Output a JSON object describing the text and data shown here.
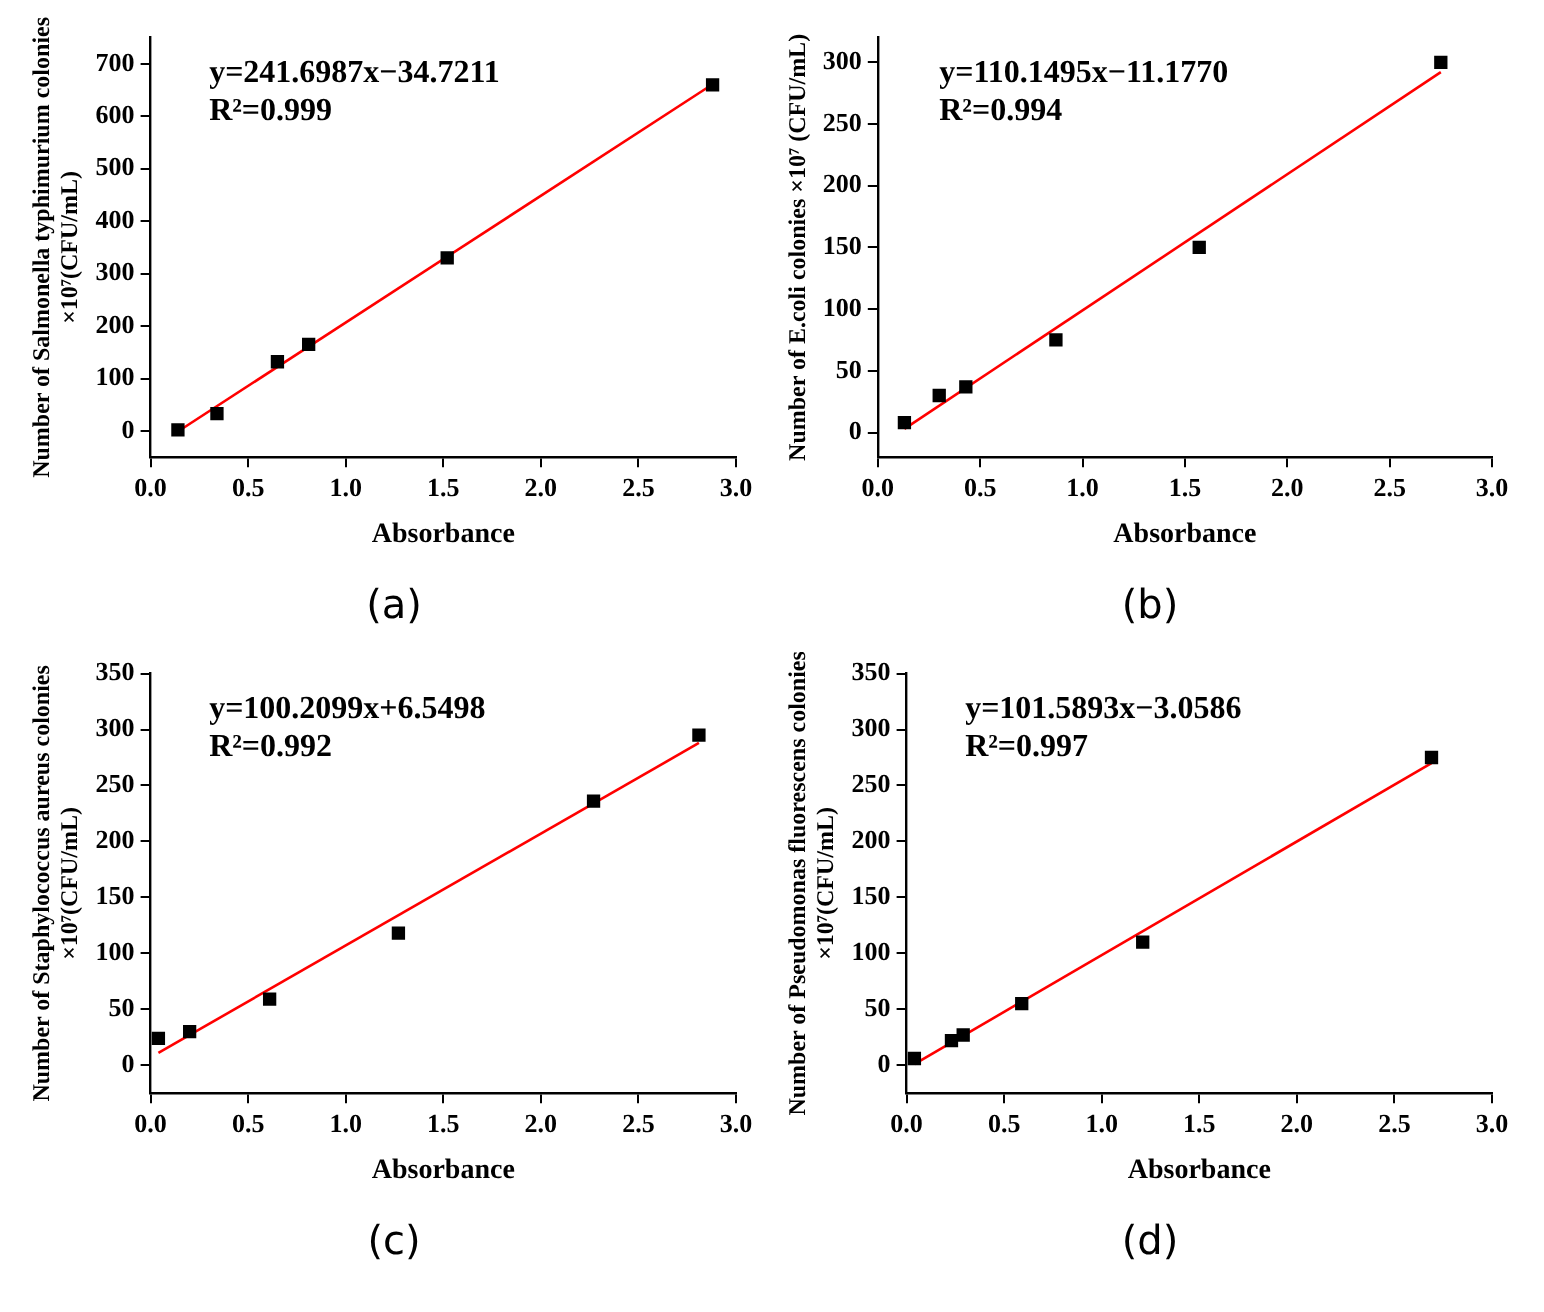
{
  "chart_data": [
    {
      "type": "scatter",
      "title": "(a)",
      "xlabel": "Absorbance",
      "ylabel": "Number of Salmonella typhimurium colonies ×10⁷(CFU/mL)",
      "annotations": [
        "y=241.6987x−34.7211",
        "R²=0.999"
      ],
      "xlim": [
        0,
        3
      ],
      "xticks": [
        {
          "value": 0,
          "label": "0.0"
        },
        {
          "value": 0.5,
          "label": "0.5"
        },
        {
          "value": 1,
          "label": "1.0"
        },
        {
          "value": 1.5,
          "label": "1.5"
        },
        {
          "value": 2,
          "label": "2.0"
        },
        {
          "value": 2.5,
          "label": "2.5"
        },
        {
          "value": 3,
          "label": "3.0"
        }
      ],
      "ylim": [
        -50,
        750
      ],
      "yticks": [
        0,
        100,
        200,
        300,
        400,
        500,
        600,
        700
      ],
      "grid": false,
      "legend": false,
      "series": [
        {
          "type": "scatter",
          "marker": "square",
          "color": "#000000",
          "x": [
            0.14,
            0.34,
            0.65,
            0.81,
            1.52,
            2.88
          ],
          "values": [
            2,
            33,
            132,
            165,
            330,
            660
          ]
        },
        {
          "type": "line",
          "marker": "none",
          "color": "#ff0000",
          "x": [
            0.14,
            2.88
          ],
          "values": [
            -1,
            661
          ]
        }
      ]
    },
    {
      "type": "scatter",
      "title": "(b)",
      "xlabel": "Absorbance",
      "ylabel": "Number of E.coli colonies ×10⁷ (CFU/mL)",
      "annotations": [
        "y=110.1495x−11.1770",
        "R²=0.994"
      ],
      "xlim": [
        0,
        3
      ],
      "xticks": [
        {
          "value": 0,
          "label": "0.0"
        },
        {
          "value": 0.5,
          "label": "0.5"
        },
        {
          "value": 1,
          "label": "1.0"
        },
        {
          "value": 1.5,
          "label": "1.5"
        },
        {
          "value": 2,
          "label": "2.0"
        },
        {
          "value": 2.5,
          "label": "2.5"
        },
        {
          "value": 3,
          "label": "3.0"
        }
      ],
      "ylim": [
        -20,
        320
      ],
      "yticks": [
        0,
        50,
        100,
        150,
        200,
        250,
        300
      ],
      "grid": false,
      "legend": false,
      "series": [
        {
          "type": "scatter",
          "marker": "square",
          "color": "#000000",
          "x": [
            0.13,
            0.3,
            0.43,
            0.87,
            1.57,
            2.75
          ],
          "values": [
            8,
            30,
            37,
            75,
            150,
            300
          ]
        },
        {
          "type": "line",
          "marker": "none",
          "color": "#ff0000",
          "x": [
            0.13,
            2.75
          ],
          "values": [
            3,
            292
          ]
        }
      ]
    },
    {
      "type": "scatter",
      "title": "(c)",
      "xlabel": "Absorbance",
      "ylabel": "Number of Staphylococcus aureus colonies ×10⁷(CFU/mL)",
      "annotations": [
        "y=100.2099x+6.5498",
        "R²=0.992"
      ],
      "xlim": [
        0,
        3
      ],
      "xticks": [
        {
          "value": 0,
          "label": "0.0"
        },
        {
          "value": 0.5,
          "label": "0.5"
        },
        {
          "value": 1,
          "label": "1.0"
        },
        {
          "value": 1.5,
          "label": "1.5"
        },
        {
          "value": 2,
          "label": "2.0"
        },
        {
          "value": 2.5,
          "label": "2.5"
        },
        {
          "value": 3,
          "label": "3.0"
        }
      ],
      "ylim": [
        -25,
        350
      ],
      "yticks": [
        0,
        50,
        100,
        150,
        200,
        250,
        300,
        350
      ],
      "grid": false,
      "legend": false,
      "series": [
        {
          "type": "scatter",
          "marker": "square",
          "color": "#000000",
          "x": [
            0.04,
            0.2,
            0.61,
            1.27,
            2.27,
            2.81
          ],
          "values": [
            24,
            30,
            59,
            118,
            236,
            295
          ]
        },
        {
          "type": "line",
          "marker": "none",
          "color": "#ff0000",
          "x": [
            0.04,
            2.81
          ],
          "values": [
            11,
            288
          ]
        }
      ]
    },
    {
      "type": "scatter",
      "title": "(d)",
      "xlabel": "Absorbance",
      "ylabel": "Number of Pseudomonas fluorescens colonies ×10⁷(CFU/mL)",
      "annotations": [
        "y=101.5893x−3.0586",
        "R²=0.997"
      ],
      "xlim": [
        0,
        3
      ],
      "xticks": [
        {
          "value": 0,
          "label": "0.0"
        },
        {
          "value": 0.5,
          "label": "0.5"
        },
        {
          "value": 1,
          "label": "1.0"
        },
        {
          "value": 1.5,
          "label": "1.5"
        },
        {
          "value": 2,
          "label": "2.0"
        },
        {
          "value": 2.5,
          "label": "2.5"
        },
        {
          "value": 3,
          "label": "3.0"
        }
      ],
      "ylim": [
        -25,
        350
      ],
      "yticks": [
        0,
        50,
        100,
        150,
        200,
        250,
        300,
        350
      ],
      "grid": false,
      "legend": false,
      "series": [
        {
          "type": "scatter",
          "marker": "square",
          "color": "#000000",
          "x": [
            0.04,
            0.23,
            0.29,
            0.59,
            1.21,
            2.69
          ],
          "values": [
            6,
            22,
            27,
            55,
            110,
            275
          ]
        },
        {
          "type": "line",
          "marker": "none",
          "color": "#ff0000",
          "x": [
            0.04,
            2.69
          ],
          "values": [
            1,
            270
          ]
        }
      ]
    }
  ]
}
